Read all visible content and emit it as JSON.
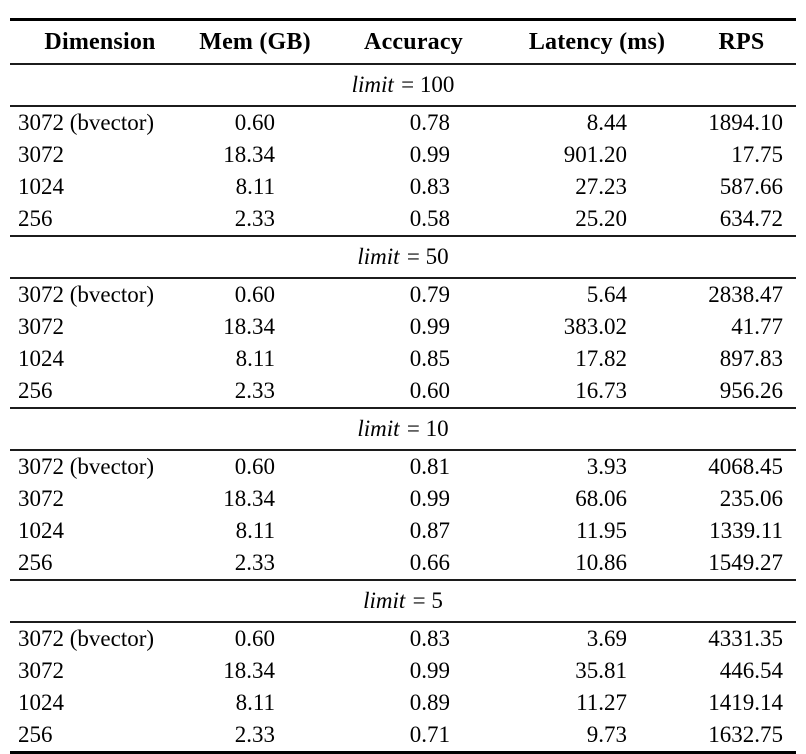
{
  "colors": {
    "background": "#ffffff",
    "text": "#000000",
    "rule": "#1c1c1c"
  },
  "table": {
    "header": [
      "Dimension",
      "Mem (GB)",
      "Accuracy",
      "Latency (ms)",
      "RPS"
    ],
    "sections": [
      {
        "limit_italic": "limit",
        "limit_rest": "= 100",
        "rows": [
          [
            "3072 (bvector)",
            "0.60",
            "0.78",
            "8.44",
            "1894.10"
          ],
          [
            "3072",
            "18.34",
            "0.99",
            "901.20",
            "17.75"
          ],
          [
            "1024",
            "8.11",
            "0.83",
            "27.23",
            "587.66"
          ],
          [
            "256",
            "2.33",
            "0.58",
            "25.20",
            "634.72"
          ]
        ]
      },
      {
        "limit_italic": "limit",
        "limit_rest": "= 50",
        "rows": [
          [
            "3072 (bvector)",
            "0.60",
            "0.79",
            "5.64",
            "2838.47"
          ],
          [
            "3072",
            "18.34",
            "0.99",
            "383.02",
            "41.77"
          ],
          [
            "1024",
            "8.11",
            "0.85",
            "17.82",
            "897.83"
          ],
          [
            "256",
            "2.33",
            "0.60",
            "16.73",
            "956.26"
          ]
        ]
      },
      {
        "limit_italic": "limit",
        "limit_rest": "= 10",
        "rows": [
          [
            "3072 (bvector)",
            "0.60",
            "0.81",
            "3.93",
            "4068.45"
          ],
          [
            "3072",
            "18.34",
            "0.99",
            "68.06",
            "235.06"
          ],
          [
            "1024",
            "8.11",
            "0.87",
            "11.95",
            "1339.11"
          ],
          [
            "256",
            "2.33",
            "0.66",
            "10.86",
            "1549.27"
          ]
        ]
      },
      {
        "limit_italic": "limit",
        "limit_rest": "= 5",
        "rows": [
          [
            "3072 (bvector)",
            "0.60",
            "0.83",
            "3.69",
            "4331.35"
          ],
          [
            "3072",
            "18.34",
            "0.99",
            "35.81",
            "446.54"
          ],
          [
            "1024",
            "8.11",
            "0.89",
            "11.27",
            "1419.14"
          ],
          [
            "256",
            "2.33",
            "0.71",
            "9.73",
            "1632.75"
          ]
        ]
      }
    ]
  }
}
